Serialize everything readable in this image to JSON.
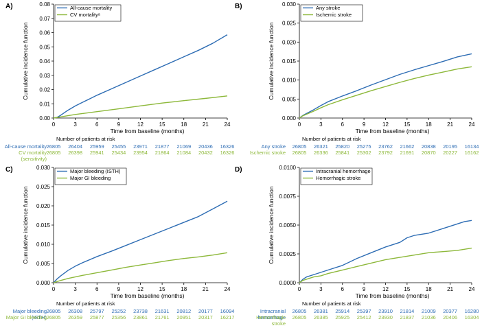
{
  "colors": {
    "blue": "#2E6DB4",
    "green": "#8DB83A"
  },
  "chart_data": [
    {
      "type": "line",
      "panel": "A)",
      "xlabel": "Time from baseline (months)",
      "ylabel": "Cumulative incidence function",
      "xlim": [
        0,
        24
      ],
      "ylim": [
        0,
        0.08
      ],
      "xticks": [
        0,
        3,
        6,
        9,
        12,
        15,
        18,
        21,
        24
      ],
      "yticks": [
        "0.00",
        "0.01",
        "0.02",
        "0.03",
        "0.04",
        "0.05",
        "0.06",
        "0.07",
        "0.08"
      ],
      "series": [
        {
          "name": "All-cause mortality",
          "color": "blue",
          "x": [
            0,
            0.5,
            1,
            2,
            3,
            4,
            5,
            6,
            8,
            10,
            12,
            14,
            16,
            18,
            20,
            22,
            24
          ],
          "y": [
            0,
            0.0005,
            0.002,
            0.0055,
            0.0085,
            0.011,
            0.0135,
            0.016,
            0.0205,
            0.025,
            0.0295,
            0.034,
            0.0385,
            0.043,
            0.0475,
            0.0525,
            0.0585
          ]
        },
        {
          "name": "CV mortalityᵃ",
          "color": "green",
          "x": [
            0,
            1,
            3,
            6,
            9,
            12,
            15,
            18,
            21,
            24
          ],
          "y": [
            0,
            0.0008,
            0.0025,
            0.0045,
            0.0065,
            0.0085,
            0.0105,
            0.0122,
            0.0138,
            0.0155
          ]
        }
      ],
      "risk_title": "Number of patients at risk",
      "risk_rows": [
        {
          "label": [
            "All-cause mortality"
          ],
          "color": "blue",
          "values": [
            "26805",
            "26404",
            "25959",
            "25455",
            "23971",
            "21877",
            "21069",
            "20436",
            "16326"
          ]
        },
        {
          "label": [
            "CV mortality",
            "(sensitivity)"
          ],
          "color": "green",
          "values": [
            "26805",
            "26398",
            "25941",
            "25434",
            "23954",
            "21864",
            "21084",
            "20432",
            "16326"
          ]
        }
      ]
    },
    {
      "type": "line",
      "panel": "B)",
      "xlabel": "Time from baseline (months)",
      "ylabel": "Cumulative incidence function",
      "xlim": [
        0,
        24
      ],
      "ylim": [
        0,
        0.03
      ],
      "xticks": [
        0,
        3,
        6,
        9,
        12,
        15,
        18,
        21,
        24
      ],
      "yticks": [
        "0.000",
        "0.005",
        "0.010",
        "0.015",
        "0.020",
        "0.025",
        "0.030"
      ],
      "series": [
        {
          "name": "Any stroke",
          "color": "blue",
          "x": [
            0,
            0.5,
            1,
            2,
            3,
            4,
            6,
            8,
            10,
            12,
            14,
            16,
            18,
            20,
            22,
            24
          ],
          "y": [
            0,
            0.0007,
            0.0012,
            0.0022,
            0.0033,
            0.0043,
            0.0058,
            0.0072,
            0.0087,
            0.0101,
            0.0115,
            0.0127,
            0.0138,
            0.0149,
            0.0161,
            0.0169
          ]
        },
        {
          "name": "Ischemic stroke",
          "color": "green",
          "x": [
            0,
            0.5,
            1,
            2,
            3,
            4,
            6,
            8,
            10,
            12,
            14,
            16,
            18,
            20,
            22,
            24
          ],
          "y": [
            0,
            0.0006,
            0.001,
            0.0018,
            0.0027,
            0.0035,
            0.0048,
            0.006,
            0.0072,
            0.0083,
            0.0094,
            0.0104,
            0.0113,
            0.0121,
            0.0129,
            0.0135
          ]
        }
      ],
      "risk_title": "Number of patients at risk",
      "risk_rows": [
        {
          "label": [
            "Any stroke"
          ],
          "color": "blue",
          "values": [
            "26805",
            "26321",
            "25820",
            "25275",
            "23762",
            "21662",
            "20838",
            "20195",
            "16134"
          ]
        },
        {
          "label": [
            "Ischemic stroke"
          ],
          "color": "green",
          "values": [
            "26805",
            "26336",
            "25841",
            "25302",
            "23792",
            "21691",
            "20870",
            "20227",
            "16162"
          ]
        }
      ]
    },
    {
      "type": "line",
      "panel": "C)",
      "xlabel": "Time from baseline (months)",
      "ylabel": "Cumulative incidence function",
      "xlim": [
        0,
        24
      ],
      "ylim": [
        0,
        0.03
      ],
      "xticks": [
        0,
        3,
        6,
        9,
        12,
        15,
        18,
        21,
        24
      ],
      "yticks": [
        "0.000",
        "0.005",
        "0.010",
        "0.015",
        "0.020",
        "0.025",
        "0.030"
      ],
      "series": [
        {
          "name": "Major bleeding (ISTH)",
          "color": "blue",
          "x": [
            0,
            0.5,
            1,
            2,
            3,
            4,
            6,
            8,
            10,
            12,
            14,
            16,
            18,
            20,
            22,
            24
          ],
          "y": [
            0,
            0.001,
            0.0018,
            0.0032,
            0.0043,
            0.0052,
            0.0068,
            0.0082,
            0.0097,
            0.0112,
            0.0127,
            0.0142,
            0.0157,
            0.0172,
            0.0192,
            0.0212
          ]
        },
        {
          "name": "Major GI bleeding",
          "color": "green",
          "x": [
            0,
            0.5,
            1,
            2,
            3,
            4,
            6,
            8,
            10,
            12,
            14,
            16,
            18,
            20,
            22,
            24
          ],
          "y": [
            0,
            0.0003,
            0.0006,
            0.0011,
            0.0015,
            0.0019,
            0.0026,
            0.0033,
            0.004,
            0.0046,
            0.0052,
            0.0058,
            0.0063,
            0.0067,
            0.0072,
            0.0078
          ]
        }
      ],
      "risk_title": "Number of patients at risk",
      "risk_rows": [
        {
          "label": [
            "Major bleeding",
            "(ISTH)"
          ],
          "color": "blue",
          "values": [
            "26805",
            "26308",
            "25797",
            "25252",
            "23738",
            "21631",
            "20812",
            "20177",
            "16094"
          ]
        },
        {
          "label": [
            "Major GI bleeding"
          ],
          "color": "green",
          "values": [
            "26805",
            "26359",
            "25877",
            "25356",
            "23861",
            "21761",
            "20951",
            "20317",
            "16217"
          ]
        }
      ]
    },
    {
      "type": "line",
      "panel": "D)",
      "xlabel": "Time from baseline (months)",
      "ylabel": "Cumulative incidence function",
      "xlim": [
        0,
        24
      ],
      "ylim": [
        0,
        0.01
      ],
      "xticks": [
        0,
        3,
        6,
        9,
        12,
        15,
        18,
        21,
        24
      ],
      "yticks": [
        "0.0000",
        "0.0025",
        "0.0050",
        "0.0075",
        "0.0100"
      ],
      "series": [
        {
          "name": "Intracranial hemorrhage",
          "color": "blue",
          "x": [
            0,
            0.5,
            1,
            2,
            3,
            4,
            6,
            8,
            10,
            12,
            14,
            15,
            16,
            18,
            20,
            22,
            23,
            24
          ],
          "y": [
            0,
            0.0003,
            0.0005,
            0.0007,
            0.0009,
            0.0011,
            0.0015,
            0.0021,
            0.0026,
            0.0031,
            0.0035,
            0.0039,
            0.0041,
            0.0043,
            0.0047,
            0.0051,
            0.0053,
            0.0054
          ]
        },
        {
          "name": "Hemorrhagic stroke",
          "color": "green",
          "x": [
            0,
            0.5,
            1,
            2,
            3,
            4,
            6,
            8,
            10,
            12,
            14,
            16,
            18,
            20,
            22,
            24
          ],
          "y": [
            0,
            0.0002,
            0.0003,
            0.0005,
            0.0006,
            0.0008,
            0.0011,
            0.0014,
            0.0017,
            0.002,
            0.0022,
            0.0024,
            0.0026,
            0.0027,
            0.0028,
            0.003
          ]
        }
      ],
      "risk_title": "Number of patients at risk",
      "risk_rows": [
        {
          "label": [
            "Intracranial",
            "hemorrhage"
          ],
          "color": "blue",
          "values": [
            "26805",
            "26381",
            "25914",
            "25397",
            "23910",
            "21814",
            "21009",
            "20377",
            "16280"
          ]
        },
        {
          "label": [
            "Hemorrhagic",
            "stroke"
          ],
          "color": "green",
          "values": [
            "26805",
            "26385",
            "25925",
            "25412",
            "23930",
            "21837",
            "21036",
            "20406",
            "16304"
          ]
        }
      ]
    }
  ]
}
